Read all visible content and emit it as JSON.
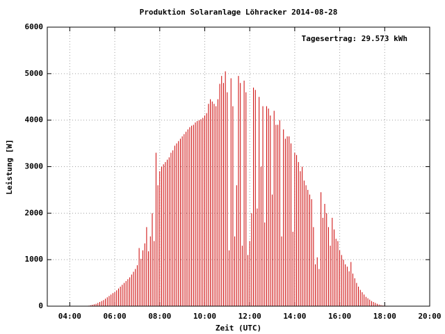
{
  "chart_data": {
    "type": "impulse",
    "title": "Produktion Solaranlage Löhracker 2014-08-28",
    "x_label": "Zeit (UTC)",
    "y_label": "Leistung [W]",
    "annotation": "Tagesertrag: 29.573 kWh",
    "color": "#cc0000",
    "grid": true,
    "xlim": [
      "03:00",
      "20:00"
    ],
    "xticks": [
      "04:00",
      "06:00",
      "08:00",
      "10:00",
      "12:00",
      "14:00",
      "16:00",
      "18:00",
      "20:00"
    ],
    "ylim": [
      0,
      6000
    ],
    "yticks": [
      0,
      1000,
      2000,
      3000,
      4000,
      5000,
      6000
    ],
    "x": [
      "04:50",
      "04:55",
      "05:00",
      "05:05",
      "05:10",
      "05:15",
      "05:20",
      "05:25",
      "05:30",
      "05:35",
      "05:40",
      "05:45",
      "05:50",
      "05:55",
      "06:00",
      "06:05",
      "06:10",
      "06:15",
      "06:20",
      "06:25",
      "06:30",
      "06:35",
      "06:40",
      "06:45",
      "06:50",
      "06:55",
      "07:00",
      "07:05",
      "07:10",
      "07:15",
      "07:20",
      "07:25",
      "07:30",
      "07:35",
      "07:40",
      "07:45",
      "07:50",
      "07:55",
      "08:00",
      "08:05",
      "08:10",
      "08:15",
      "08:20",
      "08:25",
      "08:30",
      "08:35",
      "08:40",
      "08:45",
      "08:50",
      "08:55",
      "09:00",
      "09:05",
      "09:10",
      "09:15",
      "09:20",
      "09:25",
      "09:30",
      "09:35",
      "09:40",
      "09:45",
      "09:50",
      "09:55",
      "10:00",
      "10:05",
      "10:10",
      "10:15",
      "10:20",
      "10:25",
      "10:30",
      "10:35",
      "10:40",
      "10:45",
      "10:50",
      "10:55",
      "11:00",
      "11:05",
      "11:10",
      "11:15",
      "11:20",
      "11:25",
      "11:30",
      "11:35",
      "11:40",
      "11:45",
      "11:50",
      "11:55",
      "12:00",
      "12:05",
      "12:10",
      "12:15",
      "12:20",
      "12:25",
      "12:30",
      "12:35",
      "12:40",
      "12:45",
      "12:50",
      "12:55",
      "13:00",
      "13:05",
      "13:10",
      "13:15",
      "13:20",
      "13:25",
      "13:30",
      "13:35",
      "13:40",
      "13:45",
      "13:50",
      "13:55",
      "14:00",
      "14:05",
      "14:10",
      "14:15",
      "14:20",
      "14:25",
      "14:30",
      "14:35",
      "14:40",
      "14:45",
      "14:50",
      "14:55",
      "15:00",
      "15:05",
      "15:10",
      "15:15",
      "15:20",
      "15:25",
      "15:30",
      "15:35",
      "15:40",
      "15:45",
      "15:50",
      "15:55",
      "16:00",
      "16:05",
      "16:10",
      "16:15",
      "16:20",
      "16:25",
      "16:30",
      "16:35",
      "16:40",
      "16:45",
      "16:50",
      "16:55",
      "17:00",
      "17:05",
      "17:10",
      "17:15",
      "17:20",
      "17:25",
      "17:30",
      "17:35",
      "17:40",
      "17:45",
      "17:50",
      "17:55",
      "18:00",
      "18:05",
      "18:10",
      "18:15",
      "18:20"
    ],
    "values": [
      10,
      20,
      30,
      40,
      50,
      70,
      90,
      110,
      130,
      160,
      190,
      220,
      250,
      280,
      300,
      340,
      380,
      420,
      460,
      500,
      540,
      580,
      620,
      680,
      740,
      800,
      880,
      1250,
      1020,
      1200,
      1350,
      1700,
      1180,
      1500,
      2000,
      1400,
      3300,
      2600,
      2900,
      3000,
      3050,
      3100,
      3150,
      3200,
      3300,
      3350,
      3450,
      3500,
      3550,
      3600,
      3650,
      3700,
      3750,
      3800,
      3850,
      3880,
      3900,
      3950,
      3980,
      4000,
      4020,
      4050,
      4100,
      4150,
      4350,
      4450,
      4400,
      4350,
      4300,
      4450,
      4780,
      4950,
      4800,
      5050,
      4600,
      1200,
      4900,
      4300,
      1500,
      2600,
      4950,
      4800,
      1300,
      4850,
      4600,
      1100,
      1400,
      2000,
      4700,
      4650,
      2100,
      4500,
      3000,
      4300,
      1800,
      4300,
      4250,
      4100,
      2400,
      4200,
      3900,
      3900,
      4000,
      1500,
      3800,
      3600,
      3650,
      3650,
      3500,
      1600,
      3300,
      3250,
      3100,
      2900,
      3000,
      2700,
      2600,
      2500,
      2400,
      2300,
      1700,
      900,
      1050,
      800,
      2450,
      1900,
      2200,
      2000,
      1700,
      1300,
      1900,
      1650,
      1450,
      1400,
      1200,
      1100,
      1000,
      900,
      850,
      750,
      950,
      700,
      600,
      500,
      420,
      350,
      300,
      250,
      200,
      170,
      140,
      110,
      90,
      70,
      50,
      35,
      25,
      15,
      10,
      8,
      5,
      3,
      2
    ]
  }
}
